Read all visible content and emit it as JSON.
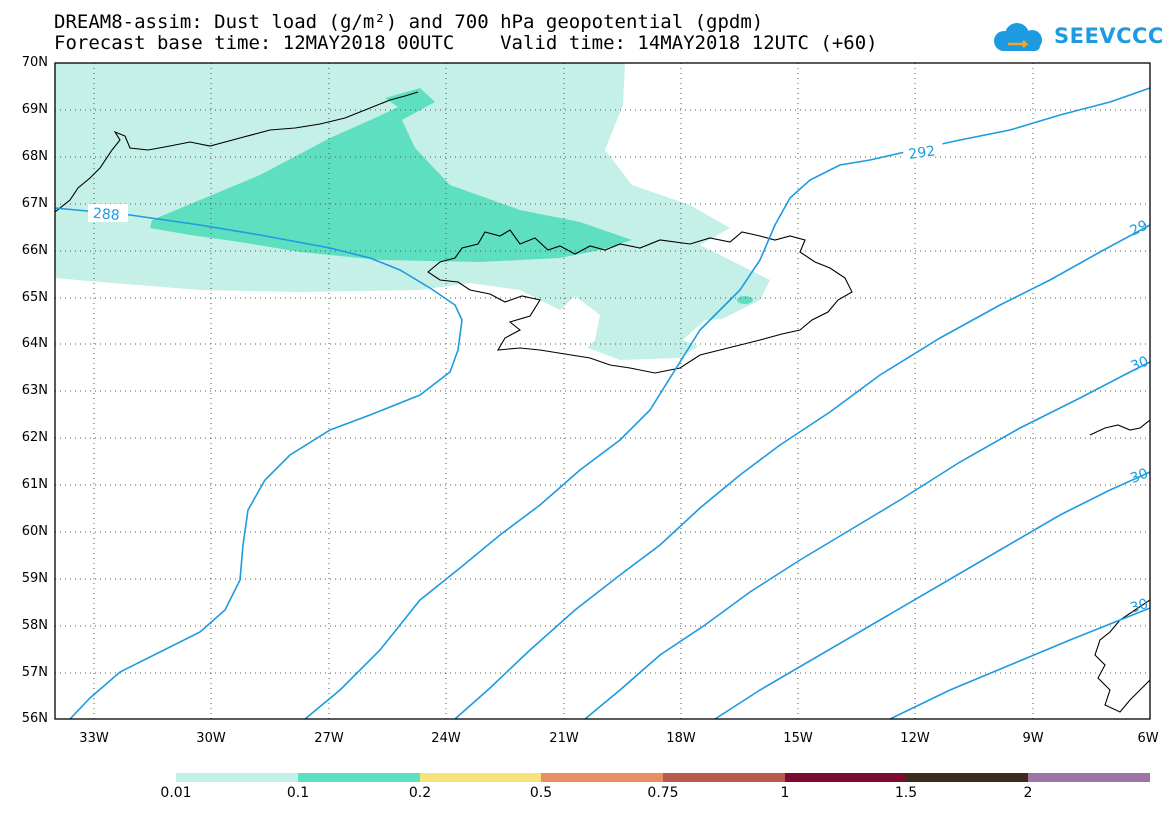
{
  "title": {
    "line1": "DREAM8-assim: Dust load (g/m²) and 700 hPa geopotential (gpdm)",
    "line2": "Forecast base time: 12MAY2018 00UTC    Valid time: 14MAY2018 12UTC (+60)"
  },
  "logo": {
    "text": "SEEVCCC",
    "icon": "cloud-icon",
    "color": "#1e9be0"
  },
  "map": {
    "region": {
      "lon_range": [
        -34,
        -6
      ],
      "lat_range": [
        56,
        70
      ]
    },
    "grid": "dotted",
    "lat_labels": [
      "70N",
      "69N",
      "68N",
      "67N",
      "66N",
      "65N",
      "64N",
      "63N",
      "62N",
      "61N",
      "60N",
      "59N",
      "58N",
      "57N",
      "56N"
    ],
    "lon_labels": [
      "33W",
      "30W",
      "27W",
      "24W",
      "21W",
      "18W",
      "15W",
      "12W",
      "9W",
      "6W"
    ],
    "contours": [
      {
        "value": "288",
        "color": "#1e9be0"
      },
      {
        "value": "292",
        "color": "#1e9be0"
      },
      {
        "value": "29",
        "color": "#1e9be0"
      },
      {
        "value": "30",
        "color": "#1e9be0"
      },
      {
        "value": "30",
        "color": "#1e9be0"
      },
      {
        "value": "30",
        "color": "#1e9be0"
      }
    ],
    "dust_fill_colors": {
      "light": "#c4f0e8",
      "medium": "#5ee0c0"
    }
  },
  "colorbar": {
    "labels": [
      "0.01",
      "0.1",
      "0.2",
      "0.5",
      "0.75",
      "1",
      "1.5",
      "2"
    ],
    "colors": [
      "#c4f0e8",
      "#5ee0c0",
      "#f5e47a",
      "#e88f66",
      "#b85a50",
      "#7a0c30",
      "#3e2a1a",
      "#9d74a8"
    ]
  }
}
